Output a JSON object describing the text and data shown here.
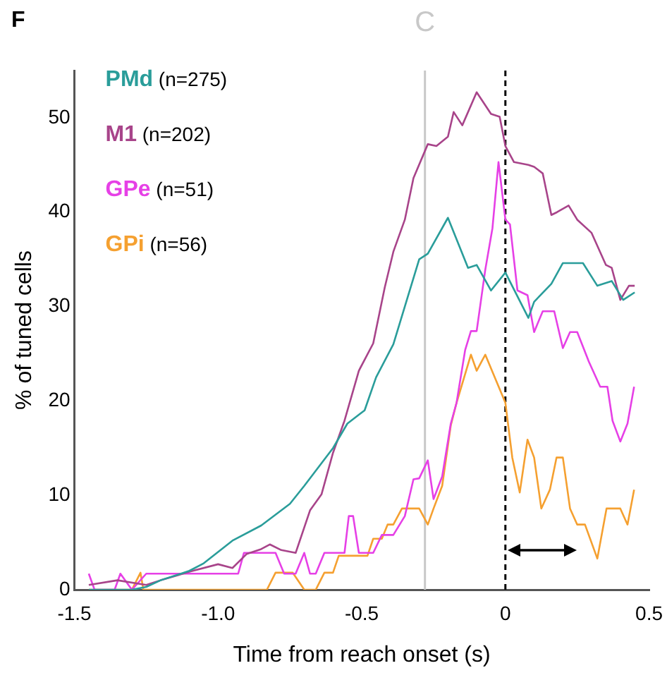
{
  "chart_data": {
    "type": "line",
    "xlabel": "Time from reach onset (s)",
    "ylabel": "% of tuned cells",
    "annotations": [
      "F"
    ],
    "xlim": [
      -1.5,
      0.5
    ],
    "xticks": [
      -1.5,
      {
        "value": -1.0,
        "label": "-1.0"
      },
      -0.5,
      0,
      0.5
    ],
    "ylim": [
      0,
      55
    ],
    "yticks": [
      0,
      10,
      20,
      30,
      40,
      50
    ],
    "grid": false,
    "legend": "top left",
    "marker": "none",
    "ref_lines": [
      {
        "axis": "x",
        "value": -0.28,
        "label": "C",
        "color": "#c8c8c8",
        "line_style": "solid"
      },
      {
        "axis": "x",
        "value": 0,
        "color": "#000000",
        "line_style": "dashed"
      }
    ],
    "series": [
      {
        "name": "PMd (n=275)",
        "color": "#2a9d9a",
        "x": [
          -1.45,
          -1.4,
          -1.3,
          -1.25,
          -1.2,
          -1.15,
          -1.1,
          -1.05,
          -0.95,
          -0.85,
          -0.75,
          -0.7,
          -0.65,
          -0.6,
          -0.55,
          -0.49,
          -0.45,
          -0.39,
          -0.34,
          -0.3,
          -0.27,
          -0.2,
          -0.13,
          -0.1,
          -0.05,
          0,
          0.08,
          0.1,
          0.16,
          0.2,
          0.27,
          0.32,
          0.37,
          0.41,
          0.45
        ],
        "values": [
          0,
          0,
          0,
          0.3,
          1,
          1.5,
          2,
          2.8,
          5.2,
          6.8,
          9.1,
          11,
          13,
          15,
          17.6,
          19,
          22.5,
          26,
          31,
          35,
          35.6,
          39.4,
          34.1,
          34.4,
          31.7,
          33.6,
          28.8,
          30.5,
          32.4,
          34.6,
          34.6,
          32.2,
          32.7,
          30.7,
          31.5
        ]
      },
      {
        "name": "M1 (n=202)",
        "color": "#a8448a",
        "x": [
          -1.45,
          -1.35,
          -1.25,
          -1.2,
          -1.1,
          -1.0,
          -0.95,
          -0.9,
          -0.85,
          -0.82,
          -0.78,
          -0.73,
          -0.68,
          -0.64,
          -0.6,
          -0.56,
          -0.51,
          -0.46,
          -0.42,
          -0.39,
          -0.35,
          -0.32,
          -0.27,
          -0.24,
          -0.2,
          -0.18,
          -0.15,
          -0.1,
          -0.05,
          -0.02,
          0,
          0.03,
          0.08,
          0.1,
          0.13,
          0.16,
          0.18,
          0.22,
          0.25,
          0.3,
          0.35,
          0.37,
          0.4,
          0.43,
          0.45
        ],
        "values": [
          0.5,
          1,
          0.5,
          1,
          1.9,
          2.7,
          2.3,
          3.8,
          4.3,
          4.8,
          4.2,
          3.9,
          8.4,
          10.1,
          14.5,
          17.9,
          23.2,
          26.1,
          32,
          35.8,
          39.2,
          43.6,
          47.2,
          47,
          48,
          50.6,
          49.2,
          52.7,
          50.4,
          50.1,
          47,
          45.3,
          45,
          44.8,
          44.1,
          39.7,
          40,
          40.7,
          39.2,
          37.8,
          34.4,
          34.1,
          30.7,
          32.2,
          32.2
        ]
      },
      {
        "name": "GPe (n=51)",
        "color": "#e640e6",
        "x": [
          -1.45,
          -1.43,
          -1.36,
          -1.34,
          -1.3,
          -1.25,
          -0.93,
          -0.91,
          -0.8,
          -0.77,
          -0.73,
          -0.7,
          -0.68,
          -0.66,
          -0.63,
          -0.56,
          -0.545,
          -0.53,
          -0.51,
          -0.46,
          -0.43,
          -0.39,
          -0.35,
          -0.32,
          -0.3,
          -0.27,
          -0.25,
          -0.22,
          -0.19,
          -0.17,
          -0.14,
          -0.12,
          -0.1,
          -0.07,
          -0.045,
          -0.024,
          0,
          0.016,
          0.042,
          0.077,
          0.1,
          0.13,
          0.17,
          0.2,
          0.225,
          0.25,
          0.29,
          0.33,
          0.355,
          0.373,
          0.4,
          0.425,
          0.448
        ],
        "values": [
          1.7,
          0,
          0,
          1.7,
          0,
          1.7,
          1.7,
          3.9,
          3.9,
          1.7,
          1.7,
          3.9,
          1.7,
          1.7,
          3.9,
          3.9,
          7.8,
          7.8,
          3.9,
          3.9,
          5.8,
          5.8,
          7.8,
          11.7,
          11.8,
          13.7,
          9.6,
          12,
          17.6,
          19.8,
          25.4,
          27.4,
          27.4,
          33.9,
          38.3,
          45.3,
          39.2,
          38.7,
          31.7,
          31.2,
          27.3,
          29.5,
          29.5,
          25.6,
          27.3,
          27.3,
          24.2,
          21.5,
          21.5,
          17.9,
          15.7,
          17.6,
          21.5
        ]
      },
      {
        "name": "GPi (n=56)",
        "color": "#f5a030",
        "x": [
          -1.45,
          -1.3,
          -1.27,
          -1.26,
          -0.83,
          -0.8,
          -0.74,
          -0.7,
          -0.66,
          -0.63,
          -0.6,
          -0.58,
          -0.48,
          -0.46,
          -0.43,
          -0.41,
          -0.39,
          -0.36,
          -0.32,
          -0.3,
          -0.27,
          -0.25,
          -0.22,
          -0.19,
          -0.17,
          -0.12,
          -0.1,
          -0.07,
          0,
          0.024,
          0.05,
          0.077,
          0.1,
          0.125,
          0.155,
          0.178,
          0.2,
          0.225,
          0.25,
          0.277,
          0.32,
          0.352,
          0.4,
          0.425,
          0.448
        ],
        "values": [
          0,
          0,
          1.8,
          0,
          0,
          1.8,
          1.8,
          0,
          0,
          1.8,
          1.8,
          3.6,
          3.6,
          5.4,
          5.4,
          6.9,
          6.9,
          8.6,
          8.6,
          8.6,
          6.9,
          8.6,
          11,
          17.4,
          19.8,
          24.9,
          23.2,
          24.9,
          19.8,
          14,
          10.3,
          15.9,
          14,
          8.6,
          10.6,
          14,
          14,
          8.6,
          6.9,
          6.9,
          3.3,
          8.6,
          8.6,
          6.9,
          10.6
        ]
      }
    ]
  }
}
